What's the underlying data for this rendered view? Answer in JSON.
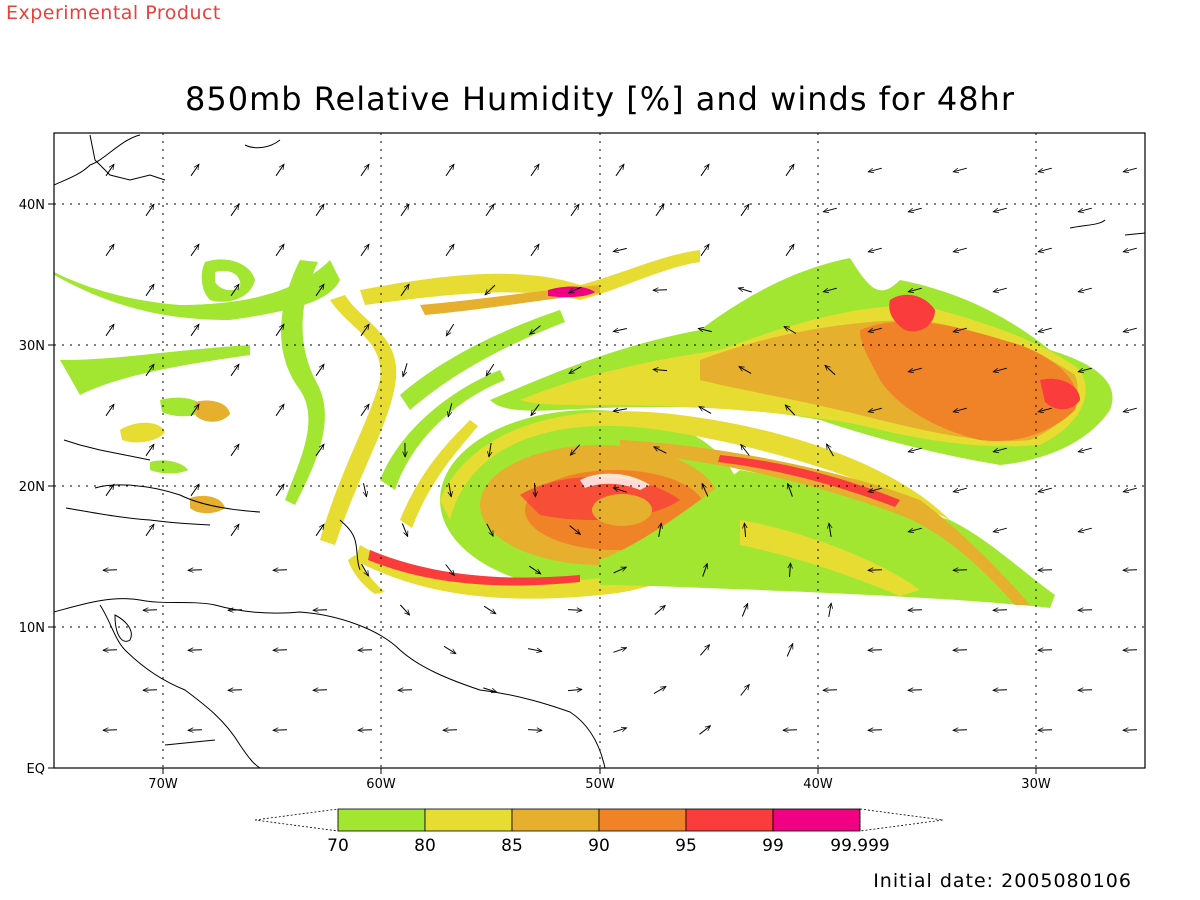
{
  "header": {
    "experimental_label": "Experimental Product",
    "title": "850mb Relative Humidity [%] and winds for 48hr"
  },
  "footer": {
    "initial_date": "Initial date: 2005080106"
  },
  "map": {
    "lat_labels": [
      "EQ",
      "10N",
      "20N",
      "30N",
      "40N"
    ],
    "lon_labels": [
      "70W",
      "60W",
      "50W",
      "40W",
      "30W"
    ]
  },
  "legend": {
    "ticks": [
      "70",
      "80",
      "85",
      "90",
      "95",
      "99",
      "99.999"
    ],
    "colors": [
      "#a2e632",
      "#e6dc32",
      "#e6af2d",
      "#f08228",
      "#fa3c3c",
      "#f00082"
    ]
  },
  "colors": {
    "rh_70": "#a2e632",
    "rh_80": "#e6dc32",
    "rh_85": "#e6af2d",
    "rh_90": "#f08228",
    "rh_95": "#fa3c3c",
    "rh_99": "#f00082",
    "corner_text": "#e8413c"
  }
}
